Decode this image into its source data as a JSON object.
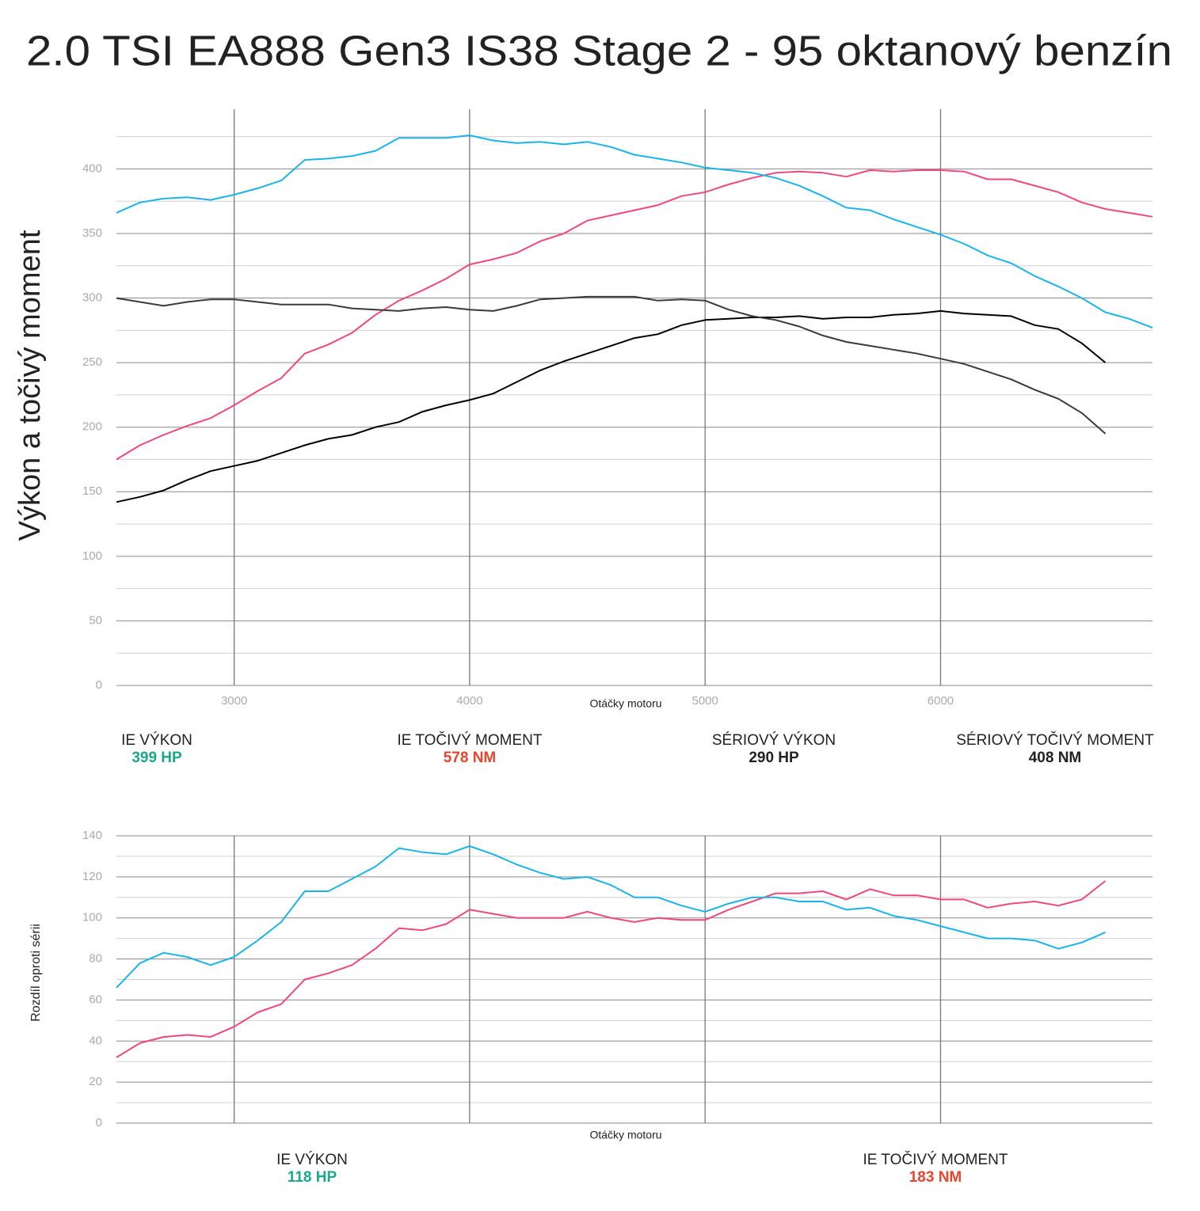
{
  "chart_data": [
    {
      "type": "line",
      "title": "2.0 TSI EA888 Gen3 IS38 Stage 2 - 95 oktanový benzín",
      "ylabel": "Výkon a točivý moment",
      "xlabel": "Otáčky motoru",
      "x": [
        2500,
        2600,
        2700,
        2800,
        2900,
        3000,
        3100,
        3200,
        3300,
        3400,
        3500,
        3600,
        3700,
        3800,
        3900,
        4000,
        4100,
        4200,
        4300,
        4400,
        4500,
        4600,
        4700,
        4800,
        4900,
        5000,
        5100,
        5200,
        5300,
        5400,
        5500,
        5600,
        5700,
        5800,
        5900,
        6000,
        6100,
        6200,
        6300,
        6400,
        6500,
        6600,
        6700,
        6800,
        6900
      ],
      "xlim": [
        2500,
        6900
      ],
      "xticks": [
        3000,
        4000,
        5000,
        6000
      ],
      "ylim": [
        0,
        445
      ],
      "yticks": [
        0,
        50,
        100,
        150,
        200,
        250,
        300,
        350,
        400
      ],
      "minor_yticks": [
        25,
        75,
        125,
        175,
        225,
        275,
        325,
        375,
        425
      ],
      "grid": true,
      "series": [
        {
          "name": "IE VÝKON",
          "peak_label": "399 HP",
          "label_color": "#1aa78a",
          "color": "#f0487a",
          "values": [
            175,
            186,
            194,
            201,
            207,
            217,
            228,
            238,
            257,
            264,
            273,
            287,
            298,
            306,
            315,
            326,
            330,
            335,
            344,
            350,
            360,
            364,
            368,
            372,
            379,
            382,
            388,
            393,
            397,
            398,
            397,
            394,
            399,
            398,
            399,
            399,
            398,
            392,
            392,
            387,
            382,
            374,
            369,
            366,
            363
          ]
        },
        {
          "name": "IE TOČIVÝ MOMENT",
          "peak_label": "578 NM",
          "label_color": "#e8452c",
          "color": "#1ab4e8",
          "values": [
            366,
            374,
            377,
            378,
            376,
            380,
            385,
            391,
            407,
            408,
            410,
            414,
            424,
            424,
            424,
            426,
            422,
            420,
            421,
            419,
            421,
            417,
            411,
            408,
            405,
            401,
            399,
            397,
            393,
            387,
            379,
            370,
            368,
            361,
            355,
            349,
            342,
            333,
            327,
            317,
            309,
            300,
            289,
            284,
            277
          ]
        },
        {
          "name": "SÉRIOVÝ VÝKON",
          "peak_label": "290 HP",
          "label_color": "#222222",
          "color": "#000000",
          "values": [
            142,
            146,
            151,
            159,
            166,
            170,
            174,
            180,
            186,
            191,
            194,
            200,
            204,
            212,
            217,
            221,
            226,
            235,
            244,
            251,
            257,
            263,
            269,
            272,
            279,
            283,
            284,
            285,
            285,
            286,
            284,
            285,
            285,
            287,
            288,
            290,
            288,
            287,
            286,
            279,
            276,
            265,
            250,
            null,
            null
          ]
        },
        {
          "name": "SÉRIOVÝ TOČIVÝ MOMENT",
          "peak_label": "408 NM",
          "label_color": "#222222",
          "color": "#3a3a3a",
          "values": [
            300,
            297,
            294,
            297,
            299,
            299,
            297,
            295,
            295,
            295,
            292,
            291,
            290,
            292,
            293,
            291,
            290,
            294,
            299,
            300,
            301,
            301,
            301,
            298,
            299,
            298,
            291,
            286,
            283,
            278,
            271,
            266,
            263,
            260,
            257,
            253,
            249,
            243,
            237,
            229,
            222,
            211,
            195,
            null,
            null
          ]
        }
      ]
    },
    {
      "type": "line",
      "ylabel": "Rozdíl oproti sérii",
      "xlabel": "Otáčky motoru",
      "x": [
        2500,
        2600,
        2700,
        2800,
        2900,
        3000,
        3100,
        3200,
        3300,
        3400,
        3500,
        3600,
        3700,
        3800,
        3900,
        4000,
        4100,
        4200,
        4300,
        4400,
        4500,
        4600,
        4700,
        4800,
        4900,
        5000,
        5100,
        5200,
        5300,
        5400,
        5500,
        5600,
        5700,
        5800,
        5900,
        6000,
        6100,
        6200,
        6300,
        6400,
        6500,
        6600,
        6700
      ],
      "xlim": [
        2500,
        6900
      ],
      "xgrid": [
        3000,
        4000,
        5000,
        6000
      ],
      "ylim": [
        0,
        140
      ],
      "yticks": [
        0,
        20,
        40,
        60,
        80,
        100,
        120,
        140
      ],
      "minor_yticks": [
        10,
        30,
        50,
        70,
        90,
        110,
        130
      ],
      "grid": true,
      "series": [
        {
          "name": "IE VÝKON",
          "peak_label": "118 HP",
          "label_color": "#1aa78a",
          "color": "#f0487a",
          "values": [
            32,
            39,
            42,
            43,
            42,
            47,
            54,
            58,
            70,
            73,
            77,
            85,
            95,
            94,
            97,
            104,
            102,
            100,
            100,
            100,
            103,
            100,
            98,
            100,
            99,
            99,
            104,
            108,
            112,
            112,
            113,
            109,
            114,
            111,
            111,
            109,
            109,
            105,
            107,
            108,
            106,
            109,
            118
          ]
        },
        {
          "name": "IE TOČIVÝ MOMENT",
          "peak_label": "183 NM",
          "label_color": "#e8452c",
          "color": "#1ab4e8",
          "values": [
            66,
            78,
            83,
            81,
            77,
            81,
            89,
            98,
            113,
            113,
            119,
            125,
            134,
            132,
            131,
            135,
            131,
            126,
            122,
            119,
            120,
            116,
            110,
            110,
            106,
            103,
            107,
            110,
            110,
            108,
            108,
            104,
            105,
            101,
            99,
            96,
            93,
            90,
            90,
            89,
            85,
            88,
            93
          ]
        }
      ]
    }
  ]
}
